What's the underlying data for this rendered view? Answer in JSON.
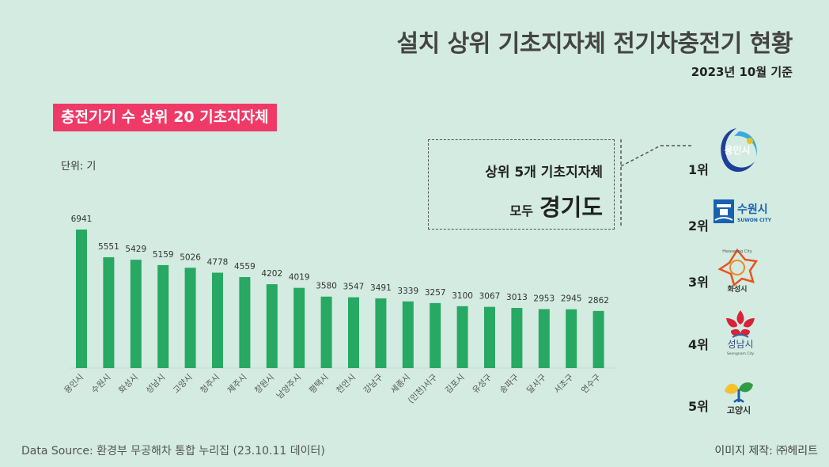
{
  "title": "설치 상위 기초지자체 전기차충전기 현황",
  "date_note": "2023년 10월 기준",
  "badge": "충전기기 수 상위 20 기초지자체",
  "unit": "단위: 기",
  "callout": {
    "line1": "상위 5개 기초지자체",
    "line2_prefix": "모두",
    "line2_emph": "경기도"
  },
  "ranks": [
    {
      "rank": "1위",
      "logo_text": "용인시",
      "logo_color": "#1d3f9a"
    },
    {
      "rank": "2위",
      "logo_text": "수원시",
      "logo_sub": "SUWON CITY",
      "logo_color": "#1761b0"
    },
    {
      "rank": "3위",
      "logo_text": "화성시",
      "logo_sub": "Hwaseong City",
      "logo_color": "#e8531c"
    },
    {
      "rank": "4위",
      "logo_text": "성남시",
      "logo_sub": "Seongnam City",
      "logo_color": "#d6233a"
    },
    {
      "rank": "5위",
      "logo_text": "고양시",
      "logo_color": "#2f9b47"
    }
  ],
  "source": "Data Source: 환경부 무공해차 통합 누리집 (23.10.11 데이터)",
  "credit": "이미지 제작: ㈜헤리트",
  "chart_data": {
    "type": "bar",
    "title": "충전기기 수 상위 20 기초지자체",
    "ylabel": "단위: 기",
    "color": "#27a863",
    "ylim": [
      0,
      6941
    ],
    "categories": [
      "용인시",
      "수원시",
      "화성시",
      "성남시",
      "고양시",
      "청주시",
      "제주시",
      "창원시",
      "남양주시",
      "평택시",
      "천안시",
      "강남구",
      "세종시",
      "(인천)서구",
      "김포시",
      "유성구",
      "송파구",
      "달서구",
      "서초구",
      "연수구"
    ],
    "values": [
      6941,
      5551,
      5429,
      5159,
      5026,
      4778,
      4559,
      4202,
      4019,
      3580,
      3547,
      3491,
      3339,
      3257,
      3100,
      3067,
      3013,
      2953,
      2945,
      2862
    ]
  }
}
